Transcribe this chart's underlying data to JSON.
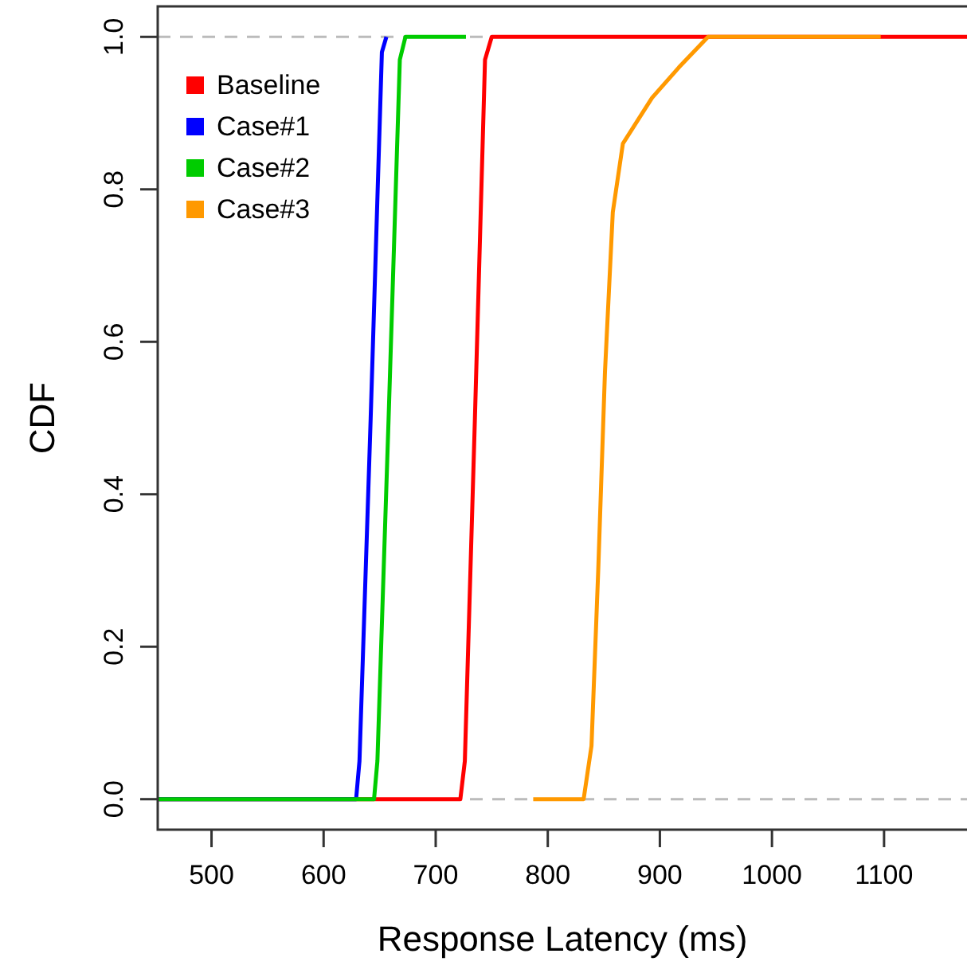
{
  "chart_data": {
    "type": "line",
    "xlabel": "Response Latency (ms)",
    "ylabel": "CDF",
    "xlim": [
      452,
      1174
    ],
    "ylim": [
      -0.04,
      1.04
    ],
    "xticks": [
      500,
      600,
      700,
      800,
      900,
      1000,
      1100
    ],
    "yticks": [
      {
        "value": 0,
        "label": "0.0"
      },
      {
        "value": 0.2,
        "label": "0.2"
      },
      {
        "value": 0.4,
        "label": "0.4"
      },
      {
        "value": 0.6,
        "label": "0.6"
      },
      {
        "value": 0.8,
        "label": "0.8"
      },
      {
        "value": 1,
        "label": "1.0"
      }
    ],
    "grid": false,
    "legend": "top left",
    "line_style": "solid",
    "ref_lines": [
      {
        "axis": "y",
        "value": 0,
        "color": "#bbbbbb",
        "line_style": "dashed"
      },
      {
        "axis": "y",
        "value": 1,
        "color": "#bbbbbb",
        "line_style": "dashed"
      }
    ],
    "series": [
      {
        "name": "Baseline",
        "color": "#ff0000",
        "x": [
          452,
          722,
          726,
          735,
          744,
          750,
          1174
        ],
        "values": [
          0,
          0,
          0.05,
          0.5,
          0.97,
          1,
          1
        ]
      },
      {
        "name": "Case#1",
        "color": "#0000ff",
        "x": [
          452,
          629,
          632,
          642,
          652,
          656
        ],
        "values": [
          0,
          0,
          0.05,
          0.5,
          0.98,
          1
        ]
      },
      {
        "name": "Case#2",
        "color": "#00cc00",
        "x": [
          452,
          645,
          648,
          658,
          668,
          673,
          727
        ],
        "values": [
          0,
          0,
          0.05,
          0.5,
          0.97,
          1,
          1
        ]
      },
      {
        "name": "Case#3",
        "color": "#ff9900",
        "x": [
          787,
          832,
          839,
          845,
          851,
          858,
          867,
          893,
          917,
          943,
          1097
        ],
        "values": [
          0,
          0,
          0.07,
          0.3,
          0.56,
          0.77,
          0.86,
          0.92,
          0.96,
          1,
          1
        ]
      }
    ]
  }
}
